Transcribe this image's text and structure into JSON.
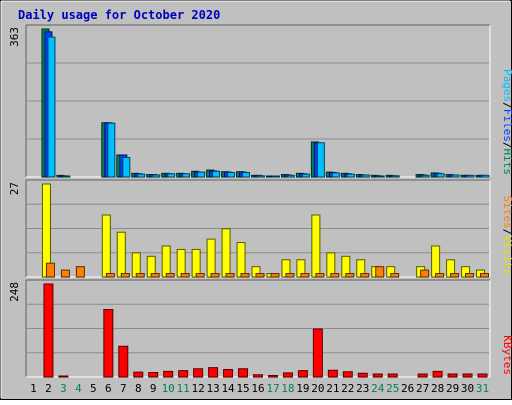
{
  "chart_data": [
    {
      "type": "bar",
      "title": "Daily usage for October 2020",
      "panel": "hits-files-pages",
      "categories": [
        "1",
        "2",
        "3",
        "4",
        "5",
        "6",
        "7",
        "8",
        "9",
        "10",
        "11",
        "12",
        "13",
        "14",
        "15",
        "16",
        "17",
        "18",
        "19",
        "20",
        "21",
        "22",
        "23",
        "24",
        "25",
        "26",
        "27",
        "28",
        "29",
        "30",
        "31"
      ],
      "weekend_days": [
        "3",
        "4",
        "10",
        "11",
        "17",
        "18",
        "24",
        "25",
        "31"
      ],
      "ymax_label": "363",
      "ylim": [
        0,
        363
      ],
      "legend": [
        {
          "label": "Hits",
          "color": "#00805c"
        },
        {
          "label": "Files",
          "color": "#0040ff"
        },
        {
          "label": "Pages",
          "color": "#00c0ff"
        }
      ],
      "legend_separator": "/",
      "series": [
        {
          "name": "Hits",
          "color": "#00805c",
          "values": [
            0,
            363,
            4,
            0,
            0,
            133,
            54,
            9,
            6,
            9,
            9,
            14,
            17,
            13,
            13,
            4,
            2,
            6,
            9,
            86,
            12,
            9,
            6,
            4,
            4,
            0,
            6,
            10,
            6,
            4,
            4
          ]
        },
        {
          "name": "Files",
          "color": "#0040ff",
          "values": [
            0,
            356,
            3,
            0,
            0,
            133,
            54,
            8,
            6,
            8,
            8,
            12,
            15,
            12,
            12,
            4,
            2,
            5,
            8,
            83,
            11,
            8,
            5,
            3,
            3,
            0,
            5,
            9,
            5,
            4,
            4
          ]
        },
        {
          "name": "Pages",
          "color": "#00c0ff",
          "values": [
            0,
            343,
            2,
            0,
            0,
            132,
            48,
            7,
            5,
            8,
            8,
            12,
            14,
            11,
            11,
            3,
            2,
            4,
            7,
            84,
            10,
            7,
            5,
            2,
            3,
            0,
            4,
            8,
            5,
            4,
            4
          ]
        }
      ]
    },
    {
      "type": "bar",
      "panel": "visits-sites",
      "ymax_label": "27",
      "ylim": [
        0,
        27
      ],
      "legend": [
        {
          "label": "Visits",
          "color": "#e0e000"
        },
        {
          "label": "Sites",
          "color": "#ff8000"
        }
      ],
      "legend_separator": "/",
      "series": [
        {
          "name": "Visits",
          "color": "#ffff00",
          "values": [
            0,
            27,
            0,
            0,
            0,
            18,
            13,
            7,
            6,
            9,
            8,
            8,
            11,
            14,
            10,
            3,
            1,
            5,
            5,
            18,
            7,
            6,
            5,
            3,
            3,
            0,
            3,
            9,
            5,
            3,
            2
          ]
        },
        {
          "name": "Sites",
          "color": "#ff8000",
          "values": [
            0,
            4,
            2,
            3,
            0,
            1,
            1,
            1,
            1,
            1,
            1,
            1,
            1,
            1,
            1,
            1,
            1,
            1,
            1,
            1,
            1,
            1,
            1,
            3,
            1,
            0,
            2,
            1,
            1,
            1,
            1
          ]
        }
      ]
    },
    {
      "type": "bar",
      "panel": "kbytes",
      "ymax_label": "248",
      "ylim": [
        0,
        248
      ],
      "legend": [
        {
          "label": "KBytes",
          "color": "#ff0000"
        }
      ],
      "series": [
        {
          "name": "KBytes",
          "color": "#ff0000",
          "values": [
            0,
            248,
            2,
            0,
            0,
            180,
            82,
            13,
            12,
            15,
            17,
            22,
            25,
            20,
            22,
            6,
            4,
            11,
            17,
            128,
            18,
            14,
            10,
            8,
            8,
            0,
            8,
            15,
            8,
            8,
            8
          ]
        }
      ]
    }
  ]
}
